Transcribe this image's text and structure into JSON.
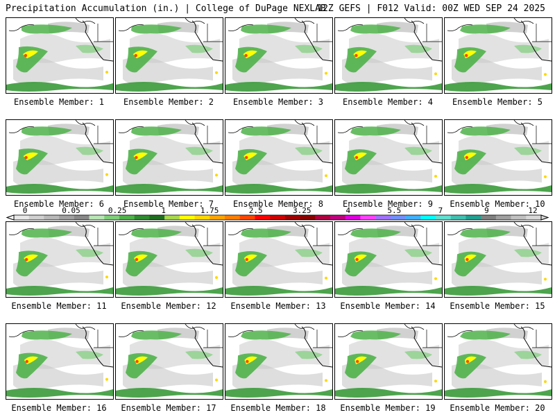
{
  "header": {
    "left_title": "Precipitation Accumulation (in.) | College of DuPage NEXLAB",
    "right_title": "12Z GEFS | F012 Valid: 00Z WED SEP 24 2025"
  },
  "colorbar": {
    "labels": [
      "0",
      "0.05",
      "0.25",
      "1",
      "1.75",
      "2.5",
      "3.25",
      "4",
      "5.5",
      "7",
      "9",
      "12"
    ],
    "colors": [
      "#e8e8e8",
      "#d0d0d0",
      "#b8b8b8",
      "#a0a0a0",
      "#888888",
      "#b9e6b5",
      "#7fcf7a",
      "#4fb34a",
      "#2e8b2e",
      "#1f6e1f",
      "#a8d84b",
      "#ffff00",
      "#ffd700",
      "#ffa500",
      "#ff7f00",
      "#ff4500",
      "#ff0000",
      "#d00000",
      "#a00000",
      "#8b0000",
      "#b00040",
      "#c0007f",
      "#e000e0",
      "#ff40ff",
      "#a070ff",
      "#7090ff",
      "#40b0ff",
      "#00ffff",
      "#60e0d0",
      "#40c0b0",
      "#20a090",
      "#808080",
      "#a0a0a0",
      "#c0c0c0",
      "#d8d8d8"
    ]
  },
  "panels": [
    {
      "caption": "Ensemble Member: 1"
    },
    {
      "caption": "Ensemble Member: 2"
    },
    {
      "caption": "Ensemble Member: 3"
    },
    {
      "caption": "Ensemble Member: 4"
    },
    {
      "caption": "Ensemble Member: 5"
    },
    {
      "caption": "Ensemble Member: 6"
    },
    {
      "caption": "Ensemble Member: 7"
    },
    {
      "caption": "Ensemble Member: 8"
    },
    {
      "caption": "Ensemble Member: 9"
    },
    {
      "caption": "Ensemble Member: 10"
    },
    {
      "caption": "Ensemble Member: 11"
    },
    {
      "caption": "Ensemble Member: 12"
    },
    {
      "caption": "Ensemble Member: 13"
    },
    {
      "caption": "Ensemble Member: 14"
    },
    {
      "caption": "Ensemble Member: 15"
    },
    {
      "caption": "Ensemble Member: 16"
    },
    {
      "caption": "Ensemble Member: 17"
    },
    {
      "caption": "Ensemble Member: 18"
    },
    {
      "caption": "Ensemble Member: 19"
    },
    {
      "caption": "Ensemble Member: 20"
    }
  ]
}
